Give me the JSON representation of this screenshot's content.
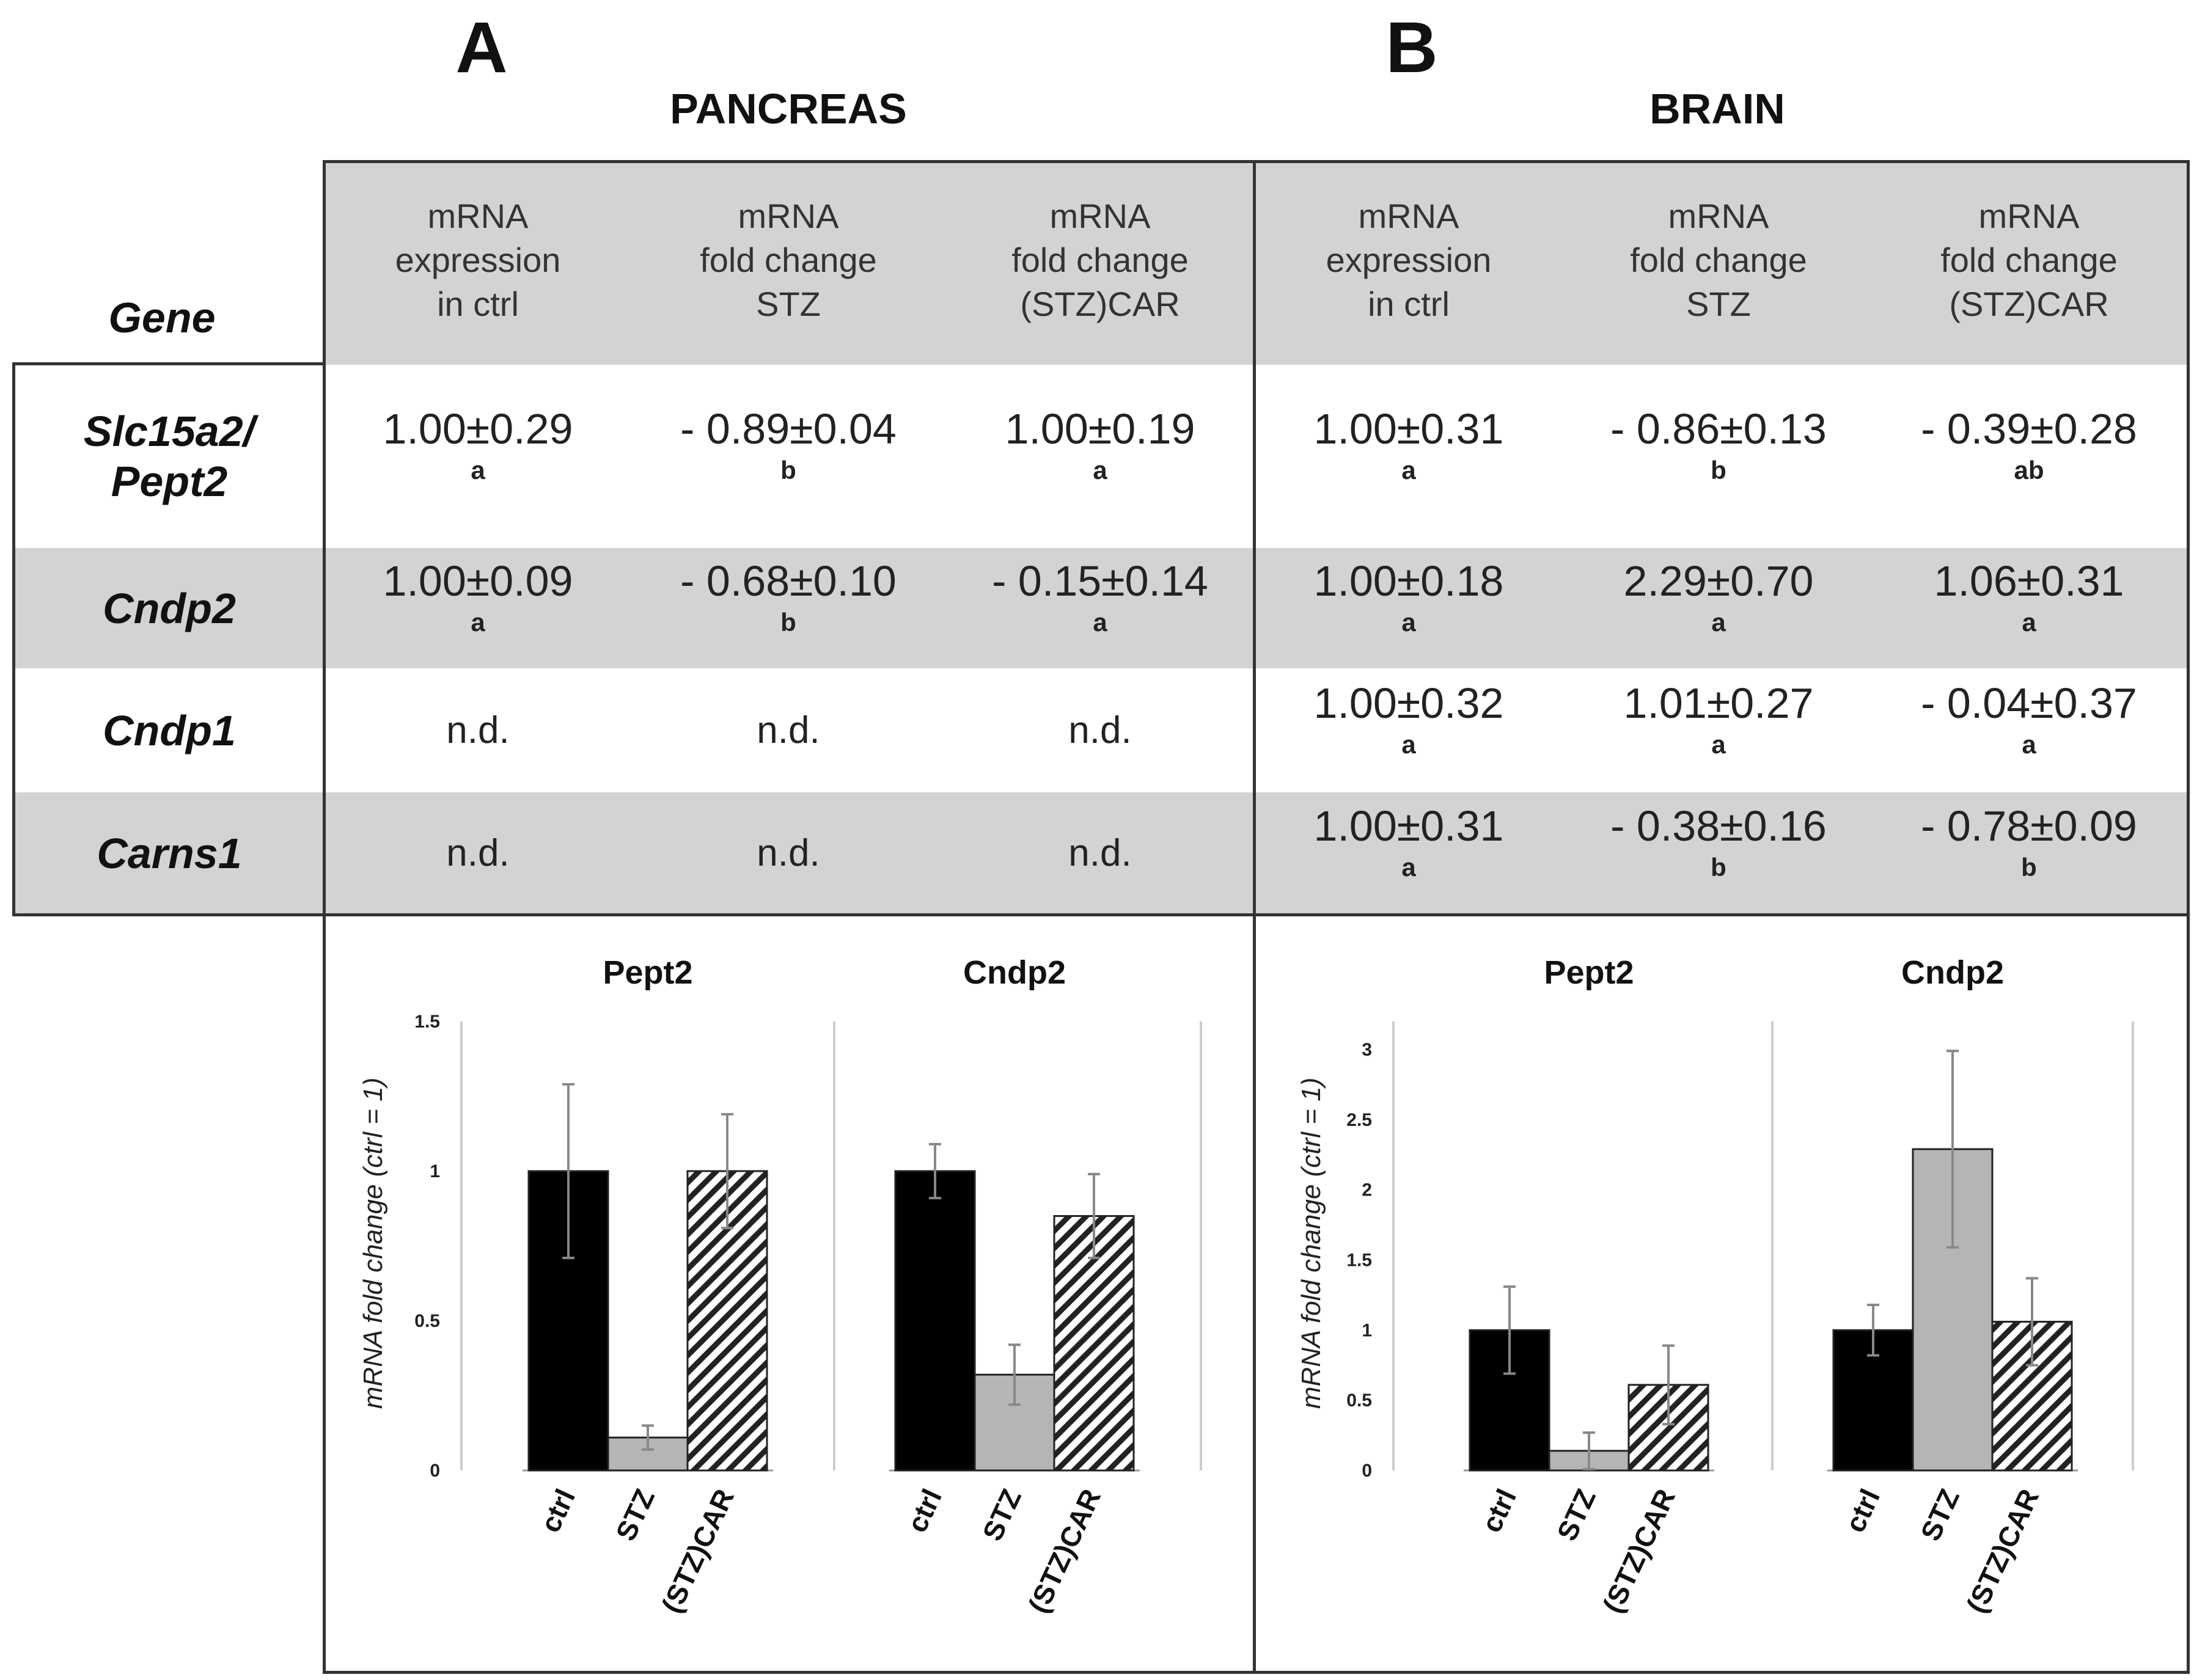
{
  "panels": [
    {
      "letter": "A",
      "title": "PANCREAS"
    },
    {
      "letter": "B",
      "title": "BRAIN"
    }
  ],
  "table": {
    "gene_header": "Gene",
    "column_headers": [
      [
        "mRNA",
        "expression",
        "in ctrl"
      ],
      [
        "mRNA",
        "fold change",
        "STZ"
      ],
      [
        "mRNA",
        "fold change",
        "(STZ)CAR"
      ],
      [
        "mRNA",
        "expression",
        "in ctrl"
      ],
      [
        "mRNA",
        "fold change",
        "STZ"
      ],
      [
        "mRNA",
        "fold change",
        "(STZ)CAR"
      ]
    ],
    "rows": [
      {
        "gene_lines": [
          "Slc15a2/",
          "Pept2"
        ],
        "cells": [
          {
            "value": "1.00±0.29",
            "letter": "a"
          },
          {
            "value": "- 0.89±0.04",
            "letter": "b"
          },
          {
            "value": "1.00±0.19",
            "letter": "a"
          },
          {
            "value": "1.00±0.31",
            "letter": "a"
          },
          {
            "value": "- 0.86±0.13",
            "letter": "b"
          },
          {
            "value": "- 0.39±0.28",
            "letter": "ab"
          }
        ]
      },
      {
        "gene_lines": [
          "Cndp2"
        ],
        "cells": [
          {
            "value": "1.00±0.09",
            "letter": "a"
          },
          {
            "value": "- 0.68±0.10",
            "letter": "b"
          },
          {
            "value": "- 0.15±0.14",
            "letter": "a"
          },
          {
            "value": "1.00±0.18",
            "letter": "a"
          },
          {
            "value": "2.29±0.70",
            "letter": "a"
          },
          {
            "value": "1.06±0.31",
            "letter": "a"
          }
        ]
      },
      {
        "gene_lines": [
          "Cndp1"
        ],
        "cells": [
          {
            "value": "n.d.",
            "letter": ""
          },
          {
            "value": "n.d.",
            "letter": ""
          },
          {
            "value": "n.d.",
            "letter": ""
          },
          {
            "value": "1.00±0.32",
            "letter": "a"
          },
          {
            "value": "1.01±0.27",
            "letter": "a"
          },
          {
            "value": "- 0.04±0.37",
            "letter": "a"
          }
        ]
      },
      {
        "gene_lines": [
          "Carns1"
        ],
        "cells": [
          {
            "value": "n.d.",
            "letter": ""
          },
          {
            "value": "n.d.",
            "letter": ""
          },
          {
            "value": "n.d.",
            "letter": ""
          },
          {
            "value": "1.00±0.31",
            "letter": "a"
          },
          {
            "value": "- 0.38±0.16",
            "letter": "b"
          },
          {
            "value": "- 0.78±0.09",
            "letter": "b"
          }
        ]
      }
    ]
  },
  "chart_data": [
    {
      "type": "bar",
      "panel": "A",
      "ylabel": "mRNA fold change (ctrl = 1)",
      "ylim": [
        0,
        1.5
      ],
      "yticks": [
        "0",
        "0.5",
        "1",
        "1.5"
      ],
      "ytick_values": [
        0,
        0.5,
        1,
        1.5
      ],
      "categories": [
        "ctrl",
        "STZ",
        "(STZ)CAR"
      ],
      "groups": [
        {
          "name": "Pept2",
          "values": [
            1.0,
            0.11,
            1.0
          ],
          "errors": [
            0.29,
            0.04,
            0.19
          ]
        },
        {
          "name": "Cndp2",
          "values": [
            1.0,
            0.32,
            0.85
          ],
          "errors": [
            0.09,
            0.1,
            0.14
          ]
        }
      ],
      "grid": false
    },
    {
      "type": "bar",
      "panel": "B",
      "ylabel": "mRNA fold change (ctrl = 1)",
      "ylim": [
        0,
        3.2
      ],
      "yticks": [
        "0",
        "0.5",
        "1",
        "1.5",
        "2",
        "2.5",
        "3"
      ],
      "ytick_values": [
        0,
        0.5,
        1,
        1.5,
        2,
        2.5,
        3
      ],
      "categories": [
        "ctrl",
        "STZ",
        "(STZ)CAR"
      ],
      "groups": [
        {
          "name": "Pept2",
          "values": [
            1.0,
            0.14,
            0.61
          ],
          "errors": [
            0.31,
            0.13,
            0.28
          ]
        },
        {
          "name": "Cndp2",
          "values": [
            1.0,
            2.29,
            1.06
          ],
          "errors": [
            0.18,
            0.7,
            0.31
          ]
        }
      ],
      "grid": false
    }
  ],
  "styles": {
    "bar_colors": [
      "#000000",
      "#b5b5b5",
      "hatched"
    ],
    "band_color": "#d3d3d3",
    "frame_color": "#333333"
  }
}
